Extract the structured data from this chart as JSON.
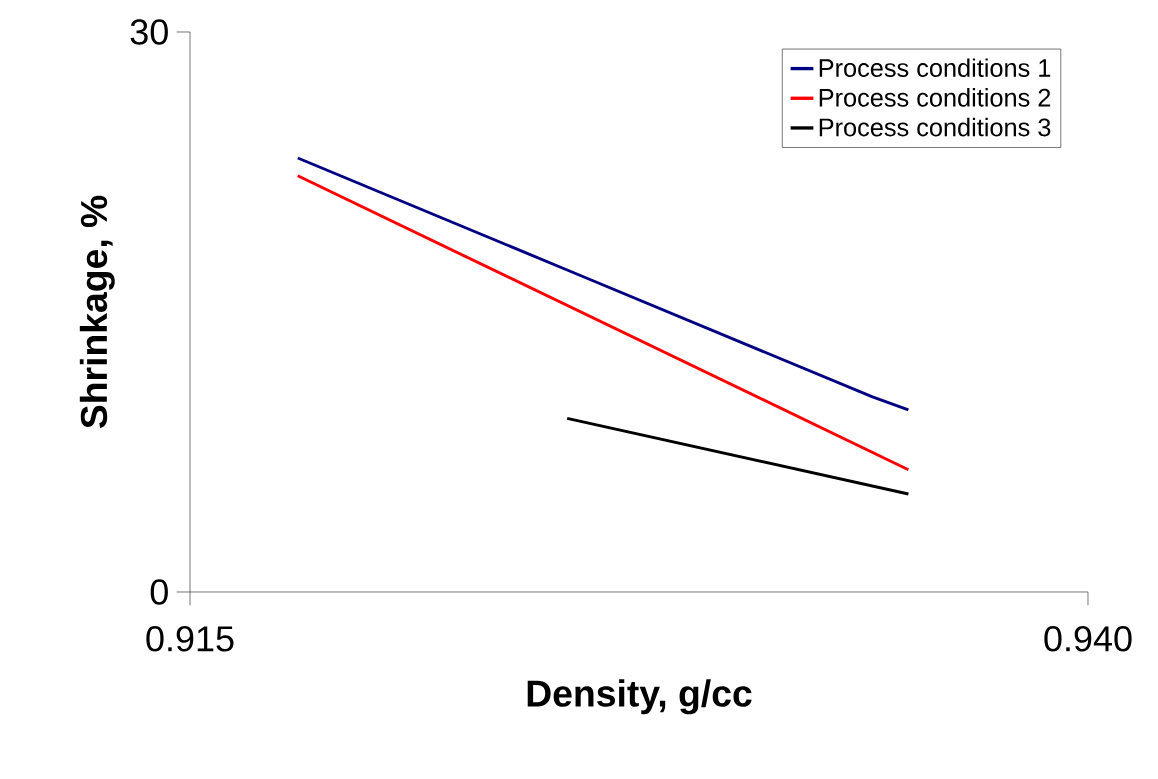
{
  "chart_data": {
    "type": "line",
    "xlabel": "Density, g/cc",
    "ylabel": "Shrinkage, %",
    "xlim": [
      0.915,
      0.94
    ],
    "ylim": [
      0,
      30
    ],
    "xticks": [
      0.915,
      {
        "value": 0.94,
        "label": "0.940"
      }
    ],
    "yticks": [
      0,
      30
    ],
    "grid": false,
    "legend": "top right",
    "marker": "none",
    "line_style": "solid",
    "series": [
      {
        "name": "Process conditions 1",
        "color": "#000080",
        "x": [
          0.918,
          0.9255,
          0.934,
          0.935
        ],
        "values": [
          23.25,
          17.25,
          10.45,
          9.75
        ]
      },
      {
        "name": "Process conditions 2",
        "color": "#ff0000",
        "x": [
          0.918,
          0.935
        ],
        "values": [
          22.3,
          6.55
        ]
      },
      {
        "name": "Process conditions 3",
        "color": "#000000",
        "x": [
          0.9255,
          0.935
        ],
        "values": [
          9.3,
          5.25
        ]
      }
    ]
  }
}
